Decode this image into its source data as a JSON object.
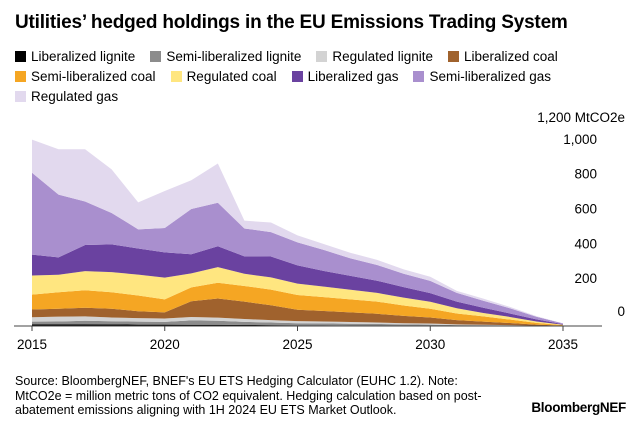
{
  "title": "Utilities’ hedged holdings in the EU Emissions Trading System",
  "footnote": "Source: BloombergNEF, BNEF's EU ETS Hedging Calculator (EUHC 1.2). Note: MtCO2e = million metric tons of CO2 equivalent. Hedging calculation based on post-abatement emissions aligning with 1H 2024 EU ETS Market Outlook.",
  "brand": "BloombergNEF",
  "chart_data": {
    "type": "area",
    "stacked": true,
    "title": "Utilities’ hedged holdings in the EU Emissions Trading System",
    "xlabel": "",
    "ylabel": "",
    "y_unit_label": "1,200 MtCO2e",
    "x": [
      2015,
      2016,
      2017,
      2018,
      2019,
      2020,
      2021,
      2022,
      2023,
      2024,
      2025,
      2026,
      2027,
      2028,
      2029,
      2030,
      2031,
      2032,
      2033,
      2034,
      2035
    ],
    "xlim": [
      2015,
      2035
    ],
    "ylim": [
      0,
      1200
    ],
    "x_ticks": [
      2015,
      2020,
      2025,
      2030,
      2035
    ],
    "y_ticks": [
      0,
      200,
      400,
      600,
      800,
      1000
    ],
    "y_tick_labels": [
      "0",
      "200",
      "400",
      "600",
      "800",
      "1,000"
    ],
    "grid": false,
    "legend_position": "top",
    "series": [
      {
        "name": "Liberalized lignite",
        "color": "#000000",
        "values": [
          10,
          10,
          10,
          9,
          8,
          8,
          7,
          7,
          6,
          5,
          4,
          4,
          3,
          3,
          2,
          2,
          1,
          1,
          1,
          0,
          0
        ]
      },
      {
        "name": "Semi-liberalized lignite",
        "color": "#8c8c8c",
        "values": [
          15,
          16,
          20,
          18,
          17,
          16,
          25,
          23,
          18,
          15,
          12,
          11,
          10,
          9,
          7,
          6,
          4,
          3,
          2,
          1,
          0
        ]
      },
      {
        "name": "Regulated lignite",
        "color": "#d3d3d3",
        "values": [
          25,
          28,
          25,
          22,
          20,
          19,
          20,
          18,
          16,
          14,
          12,
          11,
          10,
          8,
          7,
          6,
          4,
          3,
          2,
          1,
          0
        ]
      },
      {
        "name": "Liberalized coal",
        "color": "#a0622d",
        "values": [
          45,
          45,
          50,
          50,
          40,
          35,
          90,
          110,
          100,
          85,
          65,
          60,
          55,
          50,
          42,
          35,
          25,
          18,
          12,
          6,
          2
        ]
      },
      {
        "name": "Semi-liberalized coal",
        "color": "#f5a623",
        "values": [
          85,
          95,
          100,
          95,
          90,
          75,
          80,
          90,
          90,
          90,
          85,
          80,
          75,
          70,
          60,
          50,
          38,
          30,
          20,
          10,
          3
        ]
      },
      {
        "name": "Regulated coal",
        "color": "#ffe680",
        "values": [
          110,
          100,
          110,
          115,
          120,
          125,
          80,
          90,
          70,
          70,
          65,
          60,
          55,
          50,
          45,
          40,
          30,
          20,
          15,
          8,
          2
        ]
      },
      {
        "name": "Liberalized gas",
        "color": "#6a42a0",
        "values": [
          120,
          100,
          150,
          160,
          150,
          145,
          110,
          120,
          100,
          120,
          105,
          90,
          80,
          70,
          60,
          50,
          38,
          30,
          20,
          12,
          4
        ]
      },
      {
        "name": "Semi-liberalized gas",
        "color": "#a98fce",
        "values": [
          470,
          360,
          250,
          180,
          110,
          140,
          260,
          250,
          160,
          140,
          132,
          120,
          100,
          90,
          77,
          70,
          50,
          40,
          30,
          15,
          4
        ]
      },
      {
        "name": "Regulated gas",
        "color": "#e2d9ee",
        "values": [
          190,
          261,
          300,
          250,
          155,
          212,
          165,
          225,
          45,
          55,
          40,
          34,
          32,
          30,
          25,
          24,
          12,
          12,
          8,
          4,
          0
        ]
      }
    ]
  }
}
